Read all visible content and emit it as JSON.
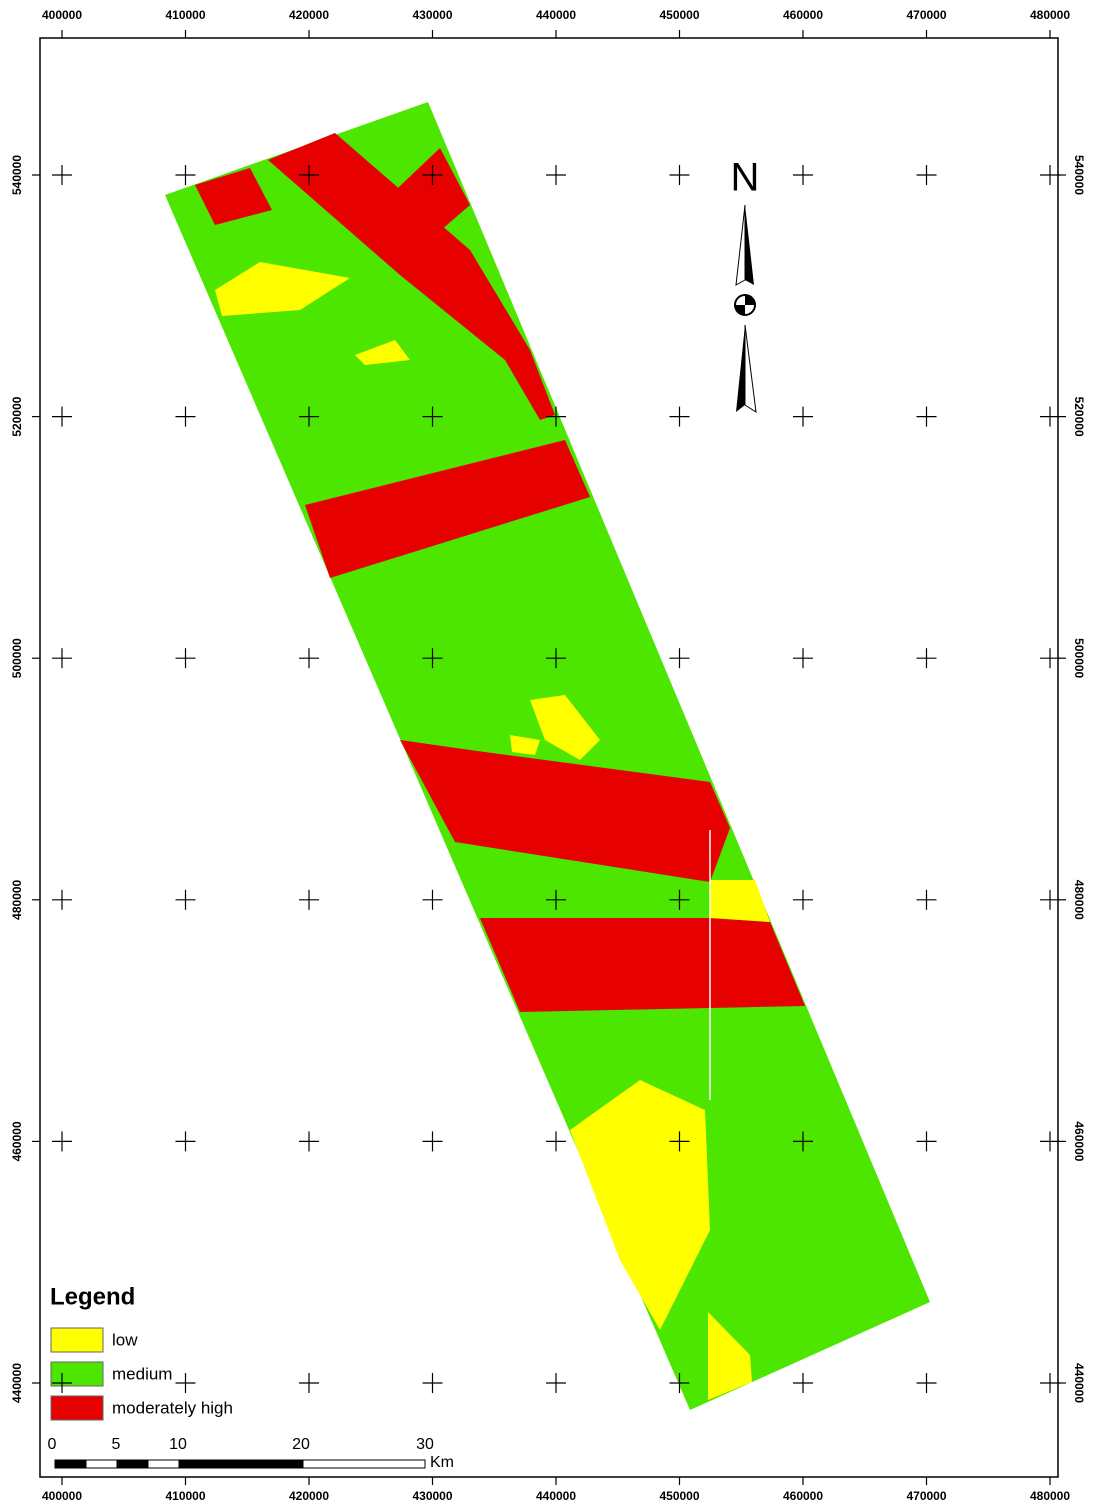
{
  "map": {
    "x_labels": [
      "400000",
      "410000",
      "420000",
      "430000",
      "440000",
      "450000",
      "460000",
      "470000",
      "480000"
    ],
    "y_labels": [
      "540000",
      "520000",
      "500000",
      "480000",
      "460000",
      "440000"
    ],
    "north": "N",
    "legend": {
      "title": "Legend",
      "items": [
        {
          "label": "low",
          "color": "#ffff00"
        },
        {
          "label": "medium",
          "color": "#4ce600"
        },
        {
          "label": "moderately high",
          "color": "#e60000"
        }
      ]
    },
    "scale_bar": {
      "labels": [
        "0",
        "5",
        "10",
        "20",
        "30"
      ],
      "unit": "Km"
    }
  }
}
